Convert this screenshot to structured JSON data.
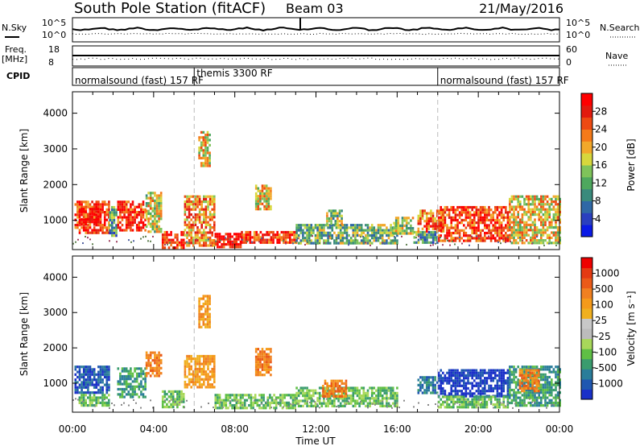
{
  "header": {
    "station": "South Pole Station (fitACF)",
    "beam": "Beam 03",
    "date": "21/May/2016"
  },
  "strips": {
    "nsky_label": "N.Sky",
    "nsky_ticks": [
      "10^5",
      "10^0"
    ],
    "nsearch_label": "N.Search",
    "freq_label": "Freq.",
    "freq_unit": "[MHz]",
    "freq_ticks": [
      "18",
      "8"
    ],
    "nave_label": "Nave",
    "nave_ticks": [
      "60",
      "0"
    ],
    "cpid_label": "CPID",
    "cpid_segments": [
      {
        "label": "normalsound (fast) 157 RF",
        "start": 0
      },
      {
        "label": "themis 3300 RF",
        "start": 6.0
      },
      {
        "label": "normalsound (fast) 157 RF",
        "start": 18.0
      }
    ]
  },
  "chart_data": [
    {
      "type": "heatmap",
      "name": "power",
      "ylabel": "Slant Range [km]",
      "xlim": [
        0,
        24
      ],
      "ylim": [
        180,
        4600
      ],
      "yticks": [
        1000,
        2000,
        3000,
        4000
      ],
      "colorbar": {
        "label": "Power [dB]",
        "range": [
          0,
          32
        ],
        "ticks": [
          "28",
          "24",
          "20",
          "16",
          "12",
          "8",
          "4"
        ],
        "colors": [
          "#0a1ae6",
          "#2a3fbf",
          "#2f68a6",
          "#3a8a7c",
          "#4ea85e",
          "#7fc35a",
          "#d7d73c",
          "#f2a82a",
          "#f47a1a",
          "#ee4a12",
          "#e21a0e",
          "#ff0000"
        ]
      },
      "echo_regions": [
        {
          "t0": 0.1,
          "t1": 1.8,
          "r0": 650,
          "r1": 1550,
          "level": 0.85
        },
        {
          "t0": 0.3,
          "t1": 1.4,
          "r0": 900,
          "r1": 1350,
          "level": 1.0
        },
        {
          "t0": 1.8,
          "t1": 2.2,
          "r0": 600,
          "r1": 1400,
          "level": 0.35
        },
        {
          "t0": 2.2,
          "t1": 3.6,
          "r0": 750,
          "r1": 1550,
          "level": 0.9
        },
        {
          "t0": 3.6,
          "t1": 4.4,
          "r0": 700,
          "r1": 1800,
          "level": 0.55
        },
        {
          "t0": 4.4,
          "t1": 5.5,
          "r0": 250,
          "r1": 700,
          "level": 0.9
        },
        {
          "t0": 5.5,
          "t1": 7.0,
          "r0": 300,
          "r1": 1700,
          "level": 0.7
        },
        {
          "t0": 6.2,
          "t1": 6.8,
          "r0": 2500,
          "r1": 3500,
          "level": 0.6
        },
        {
          "t0": 7.0,
          "t1": 8.3,
          "r0": 250,
          "r1": 650,
          "level": 1.0
        },
        {
          "t0": 8.3,
          "t1": 11.0,
          "r0": 350,
          "r1": 700,
          "level": 0.85
        },
        {
          "t0": 9.0,
          "t1": 9.8,
          "r0": 1300,
          "r1": 2000,
          "level": 0.6
        },
        {
          "t0": 11.0,
          "t1": 16.0,
          "r0": 350,
          "r1": 900,
          "level": 0.4
        },
        {
          "t0": 12.5,
          "t1": 13.3,
          "r0": 900,
          "r1": 1300,
          "level": 0.45
        },
        {
          "t0": 15.8,
          "t1": 16.8,
          "r0": 600,
          "r1": 1100,
          "level": 0.5
        },
        {
          "t0": 16.8,
          "t1": 18.0,
          "r0": 400,
          "r1": 700,
          "level": 0.35
        },
        {
          "t0": 17.0,
          "t1": 18.3,
          "r0": 700,
          "r1": 1300,
          "level": 0.75
        },
        {
          "t0": 18.0,
          "t1": 21.5,
          "r0": 400,
          "r1": 1400,
          "level": 0.85
        },
        {
          "t0": 21.5,
          "t1": 24.0,
          "r0": 400,
          "r1": 1700,
          "level": 0.6
        }
      ]
    },
    {
      "type": "heatmap",
      "name": "velocity",
      "ylabel": "Slant Range [km]",
      "xlabel": "Time UT",
      "xlim": [
        0,
        24
      ],
      "ylim": [
        180,
        4600
      ],
      "yticks": [
        1000,
        2000,
        3000,
        4000
      ],
      "xticks": [
        "00:00",
        "04:00",
        "08:00",
        "12:00",
        "16:00",
        "20:00",
        "00:00"
      ],
      "colorbar": {
        "label": "Velocity [m s⁻¹]",
        "ticks": [
          "1000",
          "500",
          "100",
          "25",
          "-25",
          "-100",
          "-500",
          "-1000"
        ],
        "colors": [
          "#1a30c8",
          "#1f57b0",
          "#2a7d9a",
          "#3a9c6e",
          "#5fbf45",
          "#a8d85a",
          "#bcbcbc",
          "#c8c8c8",
          "#f0b020",
          "#f59a1a",
          "#f08020",
          "#ea5a18",
          "#e43a12",
          "#ee0000"
        ]
      },
      "echo_regions": [
        {
          "t0": 0.1,
          "t1": 1.8,
          "r0": 700,
          "r1": 1500,
          "color_index": 1
        },
        {
          "t0": 0.3,
          "t1": 1.8,
          "r0": 350,
          "r1": 700,
          "color_index": 4
        },
        {
          "t0": 2.2,
          "t1": 3.6,
          "r0": 600,
          "r1": 1450,
          "color_index": 3
        },
        {
          "t0": 3.6,
          "t1": 4.4,
          "r0": 1200,
          "r1": 1900,
          "color_index": 10
        },
        {
          "t0": 4.4,
          "t1": 5.5,
          "r0": 300,
          "r1": 800,
          "color_index": 4
        },
        {
          "t0": 5.5,
          "t1": 7.0,
          "r0": 900,
          "r1": 1800,
          "color_index": 9
        },
        {
          "t0": 6.2,
          "t1": 6.8,
          "r0": 2600,
          "r1": 3500,
          "color_index": 9
        },
        {
          "t0": 7.0,
          "t1": 11.0,
          "r0": 300,
          "r1": 700,
          "color_index": 4
        },
        {
          "t0": 9.0,
          "t1": 9.8,
          "r0": 1200,
          "r1": 2000,
          "color_index": 10
        },
        {
          "t0": 11.0,
          "t1": 16.0,
          "r0": 350,
          "r1": 900,
          "color_index": 4
        },
        {
          "t0": 12.3,
          "t1": 13.5,
          "r0": 600,
          "r1": 1100,
          "color_index": 10
        },
        {
          "t0": 17.0,
          "t1": 18.0,
          "r0": 700,
          "r1": 1200,
          "color_index": 2
        },
        {
          "t0": 18.0,
          "t1": 21.5,
          "r0": 650,
          "r1": 1400,
          "color_index": 0
        },
        {
          "t0": 18.0,
          "t1": 21.5,
          "r0": 350,
          "r1": 650,
          "color_index": 4
        },
        {
          "t0": 21.5,
          "t1": 24.0,
          "r0": 400,
          "r1": 1500,
          "color_index": 3
        },
        {
          "t0": 22.0,
          "t1": 23.0,
          "r0": 800,
          "r1": 1400,
          "color_index": 10
        }
      ]
    }
  ]
}
